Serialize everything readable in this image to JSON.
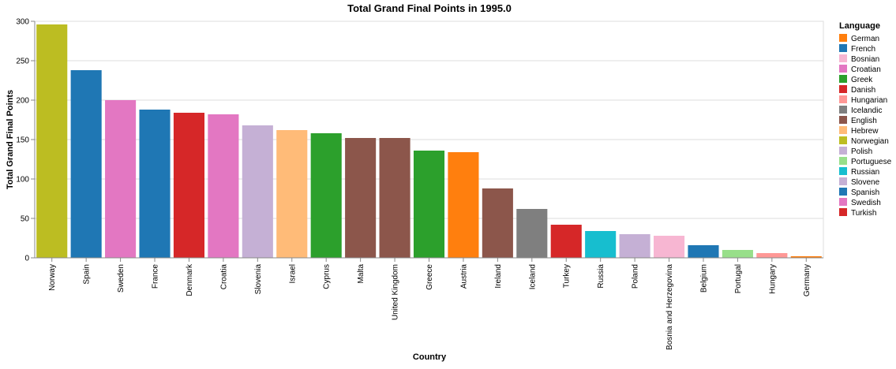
{
  "chart_data": {
    "type": "bar",
    "title": "Total Grand Final Points in 1995.0",
    "xlabel": "Country",
    "ylabel": "Total Grand Final Points",
    "ylim": [
      0,
      300
    ],
    "yticks": [
      0,
      50,
      100,
      150,
      200,
      250,
      300
    ],
    "grid": true,
    "legend_title": "Language",
    "legend_position": "right",
    "categories": [
      "Norway",
      "Spain",
      "Sweden",
      "France",
      "Denmark",
      "Croatia",
      "Slovenia",
      "Israel",
      "Cyprus",
      "Malta",
      "United Kingdom",
      "Greece",
      "Austria",
      "Ireland",
      "Iceland",
      "Turkey",
      "Russia",
      "Poland",
      "Bosnia and Herzegovina",
      "Belgium",
      "Portugal",
      "Hungary",
      "Germany"
    ],
    "values": [
      296,
      238,
      200,
      188,
      184,
      182,
      168,
      162,
      158,
      152,
      152,
      136,
      134,
      88,
      62,
      42,
      34,
      30,
      28,
      16,
      10,
      6,
      2
    ],
    "languages": [
      "Norwegian",
      "Spanish",
      "Swedish",
      "French",
      "Danish",
      "Croatian",
      "Slovene",
      "Hebrew",
      "Greek",
      "English",
      "English",
      "Greek",
      "German",
      "English",
      "Icelandic",
      "Turkish",
      "Russian",
      "Polish",
      "Bosnian",
      "French",
      "Portuguese",
      "Hungarian",
      "German"
    ],
    "legend": [
      {
        "label": "German",
        "color": "#ff7f0e"
      },
      {
        "label": "French",
        "color": "#1f77b4"
      },
      {
        "label": "Bosnian",
        "color": "#f7b6d2"
      },
      {
        "label": "Croatian",
        "color": "#e377c2"
      },
      {
        "label": "Greek",
        "color": "#2ca02c"
      },
      {
        "label": "Danish",
        "color": "#d62728"
      },
      {
        "label": "Hungarian",
        "color": "#ff9896"
      },
      {
        "label": "Icelandic",
        "color": "#7f7f7f"
      },
      {
        "label": "English",
        "color": "#8c564b"
      },
      {
        "label": "Hebrew",
        "color": "#ffbb78"
      },
      {
        "label": "Norwegian",
        "color": "#bcbd22"
      },
      {
        "label": "Polish",
        "color": "#c5b0d5"
      },
      {
        "label": "Portuguese",
        "color": "#98df8a"
      },
      {
        "label": "Russian",
        "color": "#17becf"
      },
      {
        "label": "Slovene",
        "color": "#c5b0d5"
      },
      {
        "label": "Spanish",
        "color": "#1f77b4"
      },
      {
        "label": "Swedish",
        "color": "#e377c2"
      },
      {
        "label": "Turkish",
        "color": "#d62728"
      }
    ]
  }
}
